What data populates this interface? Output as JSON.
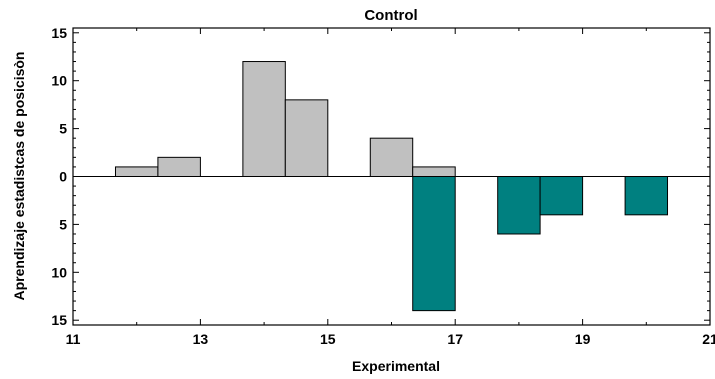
{
  "chart_data": {
    "type": "bar",
    "subtype": "mirrored-histogram",
    "title": "Control",
    "xlabel": "Experimental",
    "ylabel": "Aprendizaje estadistcas de posicisòn",
    "xlim": [
      11,
      21
    ],
    "ylim": [
      -15.5,
      15.5
    ],
    "x_ticks": [
      "11",
      "13",
      "15",
      "17",
      "19",
      "21"
    ],
    "y_ticks": [
      {
        "value": 15,
        "label": "15"
      },
      {
        "value": 10,
        "label": "10"
      },
      {
        "value": 5,
        "label": "5"
      },
      {
        "value": 0,
        "label": "0"
      },
      {
        "value": -5,
        "label": "5"
      },
      {
        "value": -10,
        "label": "10"
      },
      {
        "value": -15,
        "label": "15"
      }
    ],
    "bin_width": 0.667,
    "series": [
      {
        "name": "Control",
        "color": "#c0c0c0",
        "direction": "up",
        "bins": [
          {
            "x0": 11.667,
            "x1": 12.333,
            "count": 1
          },
          {
            "x0": 12.333,
            "x1": 13.0,
            "count": 2
          },
          {
            "x0": 13.667,
            "x1": 14.333,
            "count": 12
          },
          {
            "x0": 14.333,
            "x1": 15.0,
            "count": 8
          },
          {
            "x0": 15.667,
            "x1": 16.333,
            "count": 4
          },
          {
            "x0": 16.333,
            "x1": 17.0,
            "count": 1
          }
        ]
      },
      {
        "name": "Experimental",
        "color": "#008080",
        "direction": "down",
        "bins": [
          {
            "x0": 16.333,
            "x1": 17.0,
            "count": 14
          },
          {
            "x0": 17.667,
            "x1": 18.333,
            "count": 6
          },
          {
            "x0": 18.333,
            "x1": 19.0,
            "count": 4
          },
          {
            "x0": 19.667,
            "x1": 20.333,
            "count": 4
          }
        ]
      }
    ],
    "grid": false,
    "legend": "none"
  }
}
